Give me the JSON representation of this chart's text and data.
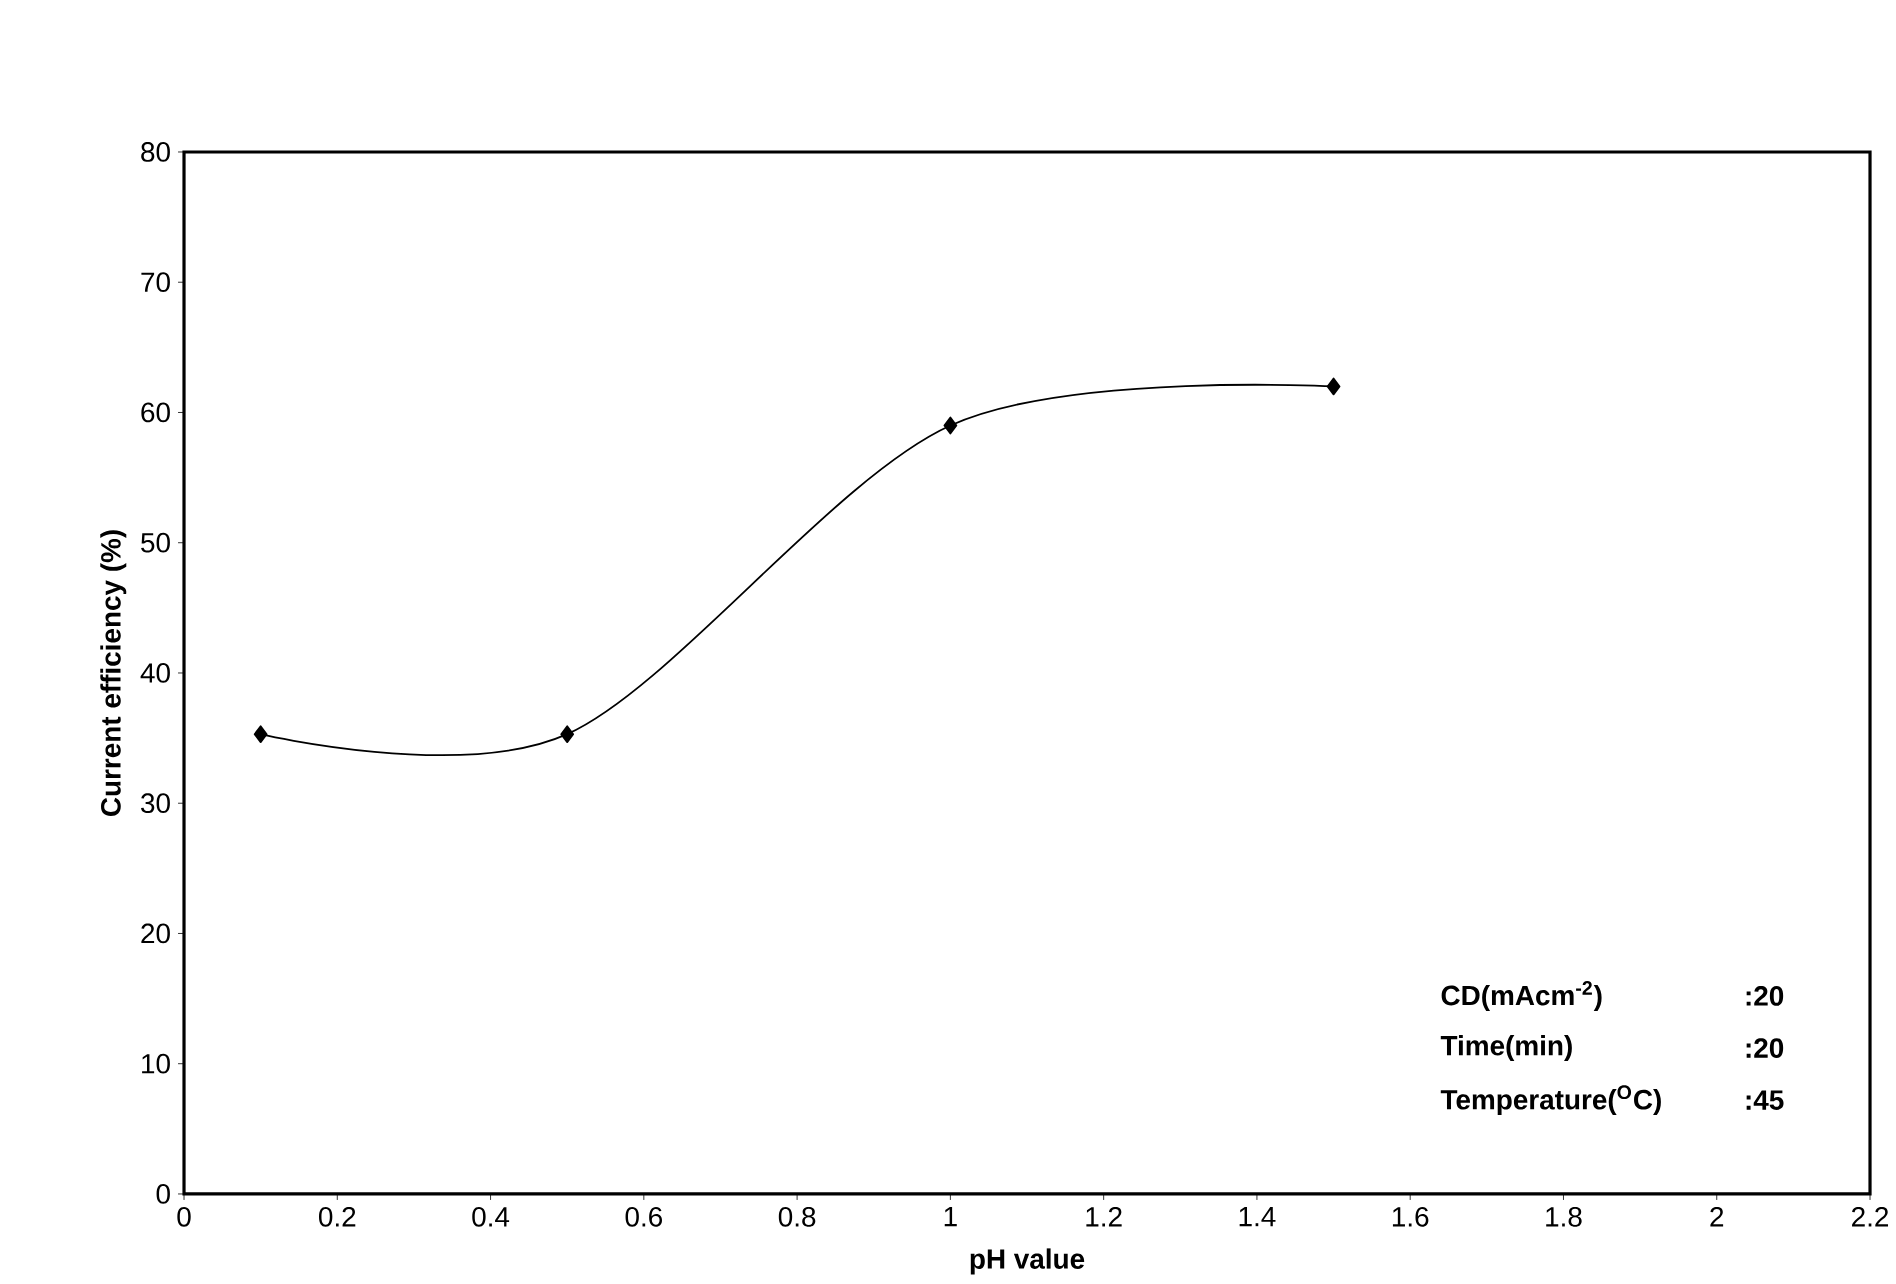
{
  "chart_data": {
    "type": "line",
    "xlabel": "pH  value",
    "ylabel": "Current efficiency (%)",
    "x": [
      0.1,
      0.5,
      1,
      1.5
    ],
    "series": [
      {
        "color": "#000000",
        "values": [
          35.3,
          35.3,
          59,
          62
        ]
      }
    ],
    "xlim": [
      0,
      2.2
    ],
    "xticks": [
      0,
      0.2,
      0.4,
      0.6,
      0.8,
      1,
      1.2,
      1.4,
      1.6,
      1.8,
      2,
      2.2
    ],
    "ylim": [
      0,
      80
    ],
    "yticks": [
      0,
      10,
      20,
      30,
      40,
      50,
      60,
      70,
      80
    ],
    "marker": "diamond",
    "line_style": "solid",
    "grid": false,
    "annotations": [
      "CD(mAcm$^{-2}$)",
      ":20",
      "Time(min)",
      ":20",
      "Temperature($^{O}$C)",
      ":45"
    ]
  }
}
